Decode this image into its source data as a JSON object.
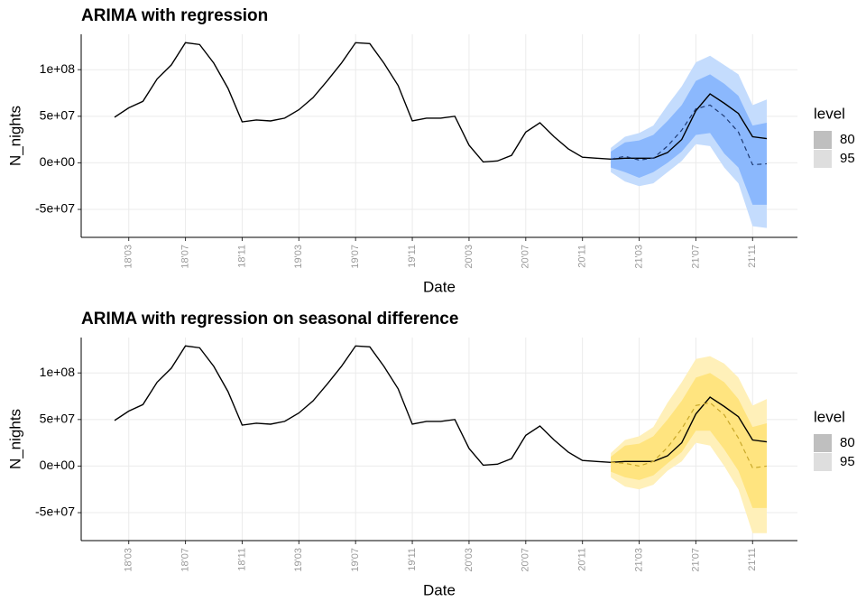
{
  "chart_data": [
    {
      "type": "line",
      "title": "ARIMA with regression",
      "x_label": "Date",
      "y_label": "N_nights",
      "categories": [
        null,
        "18'03",
        null,
        null,
        null,
        "18'07",
        null,
        null,
        null,
        "18'11",
        null,
        null,
        null,
        "19'03",
        null,
        null,
        null,
        "19'07",
        null,
        null,
        null,
        "19'11",
        null,
        null,
        null,
        "20'03",
        null,
        null,
        null,
        "20'07",
        null,
        null,
        null,
        "20'11",
        null,
        null,
        null,
        "21'03",
        null,
        null,
        null,
        "21'07",
        null,
        null,
        null,
        "21'11",
        null
      ],
      "observed": [
        49000000,
        59000000,
        66000000,
        90000000,
        105000000,
        129000000,
        127000000,
        107000000,
        80000000,
        44000000,
        46000000,
        45000000,
        48000000,
        57000000,
        70000000,
        88000000,
        107000000,
        129000000,
        128000000,
        107000000,
        83000000,
        45000000,
        48000000,
        48000000,
        50000000,
        19000000,
        1000000,
        2000000,
        8000000,
        33000000,
        43000000,
        28000000,
        15000000,
        6000000,
        5000000,
        4000000,
        5000000,
        5000000,
        5000000,
        11000000,
        25000000,
        56000000,
        74000000,
        64000000,
        53000000,
        28000000,
        26000000
      ],
      "observed_color": "#000000",
      "forecast": [
        null,
        null,
        null,
        null,
        null,
        null,
        null,
        null,
        null,
        null,
        null,
        null,
        null,
        null,
        null,
        null,
        null,
        null,
        null,
        null,
        null,
        null,
        null,
        null,
        null,
        null,
        null,
        null,
        null,
        null,
        null,
        null,
        null,
        null,
        null,
        4000000,
        7000000,
        3000000,
        5000000,
        18000000,
        35000000,
        58000000,
        62000000,
        50000000,
        33000000,
        -2000000,
        -1000000
      ],
      "forecast_color": "#1f3b73",
      "legend_title": "level",
      "bands": [
        {
          "name": "80",
          "color": "#8bb8fd",
          "legend_color": "#bfbfbf",
          "lower": [
            null,
            null,
            null,
            null,
            null,
            null,
            null,
            null,
            null,
            null,
            null,
            null,
            null,
            null,
            null,
            null,
            null,
            null,
            null,
            null,
            null,
            null,
            null,
            null,
            null,
            null,
            null,
            null,
            null,
            null,
            null,
            null,
            null,
            null,
            null,
            -5000000,
            -10000000,
            -16000000,
            -10000000,
            0,
            12000000,
            30000000,
            32000000,
            10000000,
            -5000000,
            -45000000,
            -45000000
          ],
          "upper": [
            null,
            null,
            null,
            null,
            null,
            null,
            null,
            null,
            null,
            null,
            null,
            null,
            null,
            null,
            null,
            null,
            null,
            null,
            null,
            null,
            null,
            null,
            null,
            null,
            null,
            null,
            null,
            null,
            null,
            null,
            null,
            null,
            null,
            null,
            null,
            12000000,
            22000000,
            24000000,
            30000000,
            45000000,
            62000000,
            88000000,
            95000000,
            85000000,
            72000000,
            40000000,
            43000000
          ]
        },
        {
          "name": "95",
          "color": "#c4dcfd",
          "legend_color": "#dedede",
          "lower": [
            null,
            null,
            null,
            null,
            null,
            null,
            null,
            null,
            null,
            null,
            null,
            null,
            null,
            null,
            null,
            null,
            null,
            null,
            null,
            null,
            null,
            null,
            null,
            null,
            null,
            null,
            null,
            null,
            null,
            null,
            null,
            null,
            null,
            null,
            null,
            -10000000,
            -20000000,
            -25000000,
            -22000000,
            -10000000,
            2000000,
            20000000,
            18000000,
            -5000000,
            -22000000,
            -68000000,
            -70000000
          ],
          "upper": [
            null,
            null,
            null,
            null,
            null,
            null,
            null,
            null,
            null,
            null,
            null,
            null,
            null,
            null,
            null,
            null,
            null,
            null,
            null,
            null,
            null,
            null,
            null,
            null,
            null,
            null,
            null,
            null,
            null,
            null,
            null,
            null,
            null,
            null,
            null,
            16000000,
            28000000,
            32000000,
            40000000,
            62000000,
            82000000,
            108000000,
            115000000,
            105000000,
            95000000,
            62000000,
            68000000
          ]
        }
      ],
      "ylim": [
        -80000000,
        138000000
      ],
      "yticks": [
        {
          "value": -50000000,
          "label": "-5e+07"
        },
        {
          "value": 0,
          "label": "0e+00"
        },
        {
          "value": 50000000,
          "label": "5e+07"
        },
        {
          "value": 100000000,
          "label": "1e+08"
        }
      ],
      "grid": true
    },
    {
      "type": "line",
      "title": "ARIMA with regression on seasonal difference",
      "x_label": "Date",
      "y_label": "N_nights",
      "categories": [
        null,
        "18'03",
        null,
        null,
        null,
        "18'07",
        null,
        null,
        null,
        "18'11",
        null,
        null,
        null,
        "19'03",
        null,
        null,
        null,
        "19'07",
        null,
        null,
        null,
        "19'11",
        null,
        null,
        null,
        "20'03",
        null,
        null,
        null,
        "20'07",
        null,
        null,
        null,
        "20'11",
        null,
        null,
        null,
        "21'03",
        null,
        null,
        null,
        "21'07",
        null,
        null,
        null,
        "21'11",
        null
      ],
      "observed": [
        49000000,
        59000000,
        66000000,
        90000000,
        105000000,
        129000000,
        127000000,
        107000000,
        80000000,
        44000000,
        46000000,
        45000000,
        48000000,
        57000000,
        70000000,
        88000000,
        107000000,
        129000000,
        128000000,
        107000000,
        83000000,
        45000000,
        48000000,
        48000000,
        50000000,
        19000000,
        1000000,
        2000000,
        8000000,
        33000000,
        43000000,
        28000000,
        15000000,
        6000000,
        5000000,
        4000000,
        5000000,
        5000000,
        5000000,
        11000000,
        25000000,
        56000000,
        74000000,
        64000000,
        53000000,
        28000000,
        26000000
      ],
      "observed_color": "#000000",
      "forecast": [
        null,
        null,
        null,
        null,
        null,
        null,
        null,
        null,
        null,
        null,
        null,
        null,
        null,
        null,
        null,
        null,
        null,
        null,
        null,
        null,
        null,
        null,
        null,
        null,
        null,
        null,
        null,
        null,
        null,
        null,
        null,
        null,
        null,
        null,
        null,
        4000000,
        3000000,
        0,
        5000000,
        20000000,
        40000000,
        65000000,
        68000000,
        55000000,
        30000000,
        -2000000,
        0
      ],
      "forecast_color": "#c9a82a",
      "legend_title": "level",
      "bands": [
        {
          "name": "80",
          "color": "#ffe47f",
          "legend_color": "#bfbfbf",
          "lower": [
            null,
            null,
            null,
            null,
            null,
            null,
            null,
            null,
            null,
            null,
            null,
            null,
            null,
            null,
            null,
            null,
            null,
            null,
            null,
            null,
            null,
            null,
            null,
            null,
            null,
            null,
            null,
            null,
            null,
            null,
            null,
            null,
            null,
            null,
            null,
            -6000000,
            -12000000,
            -15000000,
            -10000000,
            3000000,
            15000000,
            38000000,
            38000000,
            18000000,
            -5000000,
            -45000000,
            -45000000
          ],
          "upper": [
            null,
            null,
            null,
            null,
            null,
            null,
            null,
            null,
            null,
            null,
            null,
            null,
            null,
            null,
            null,
            null,
            null,
            null,
            null,
            null,
            null,
            null,
            null,
            null,
            null,
            null,
            null,
            null,
            null,
            null,
            null,
            null,
            null,
            null,
            null,
            10000000,
            22000000,
            24000000,
            32000000,
            50000000,
            70000000,
            95000000,
            100000000,
            90000000,
            72000000,
            42000000,
            46000000
          ]
        },
        {
          "name": "95",
          "color": "#fff0b9",
          "legend_color": "#dedede",
          "lower": [
            null,
            null,
            null,
            null,
            null,
            null,
            null,
            null,
            null,
            null,
            null,
            null,
            null,
            null,
            null,
            null,
            null,
            null,
            null,
            null,
            null,
            null,
            null,
            null,
            null,
            null,
            null,
            null,
            null,
            null,
            null,
            null,
            null,
            null,
            null,
            -12000000,
            -22000000,
            -25000000,
            -20000000,
            -5000000,
            5000000,
            25000000,
            22000000,
            0,
            -25000000,
            -72000000,
            -72000000
          ],
          "upper": [
            null,
            null,
            null,
            null,
            null,
            null,
            null,
            null,
            null,
            null,
            null,
            null,
            null,
            null,
            null,
            null,
            null,
            null,
            null,
            null,
            null,
            null,
            null,
            null,
            null,
            null,
            null,
            null,
            null,
            null,
            null,
            null,
            null,
            null,
            null,
            14000000,
            28000000,
            32000000,
            42000000,
            68000000,
            90000000,
            115000000,
            118000000,
            110000000,
            95000000,
            65000000,
            72000000
          ]
        }
      ],
      "ylim": [
        -80000000,
        138000000
      ],
      "yticks": [
        {
          "value": -50000000,
          "label": "-5e+07"
        },
        {
          "value": 0,
          "label": "0e+00"
        },
        {
          "value": 50000000,
          "label": "5e+07"
        },
        {
          "value": 100000000,
          "label": "1e+08"
        }
      ],
      "grid": true
    }
  ]
}
